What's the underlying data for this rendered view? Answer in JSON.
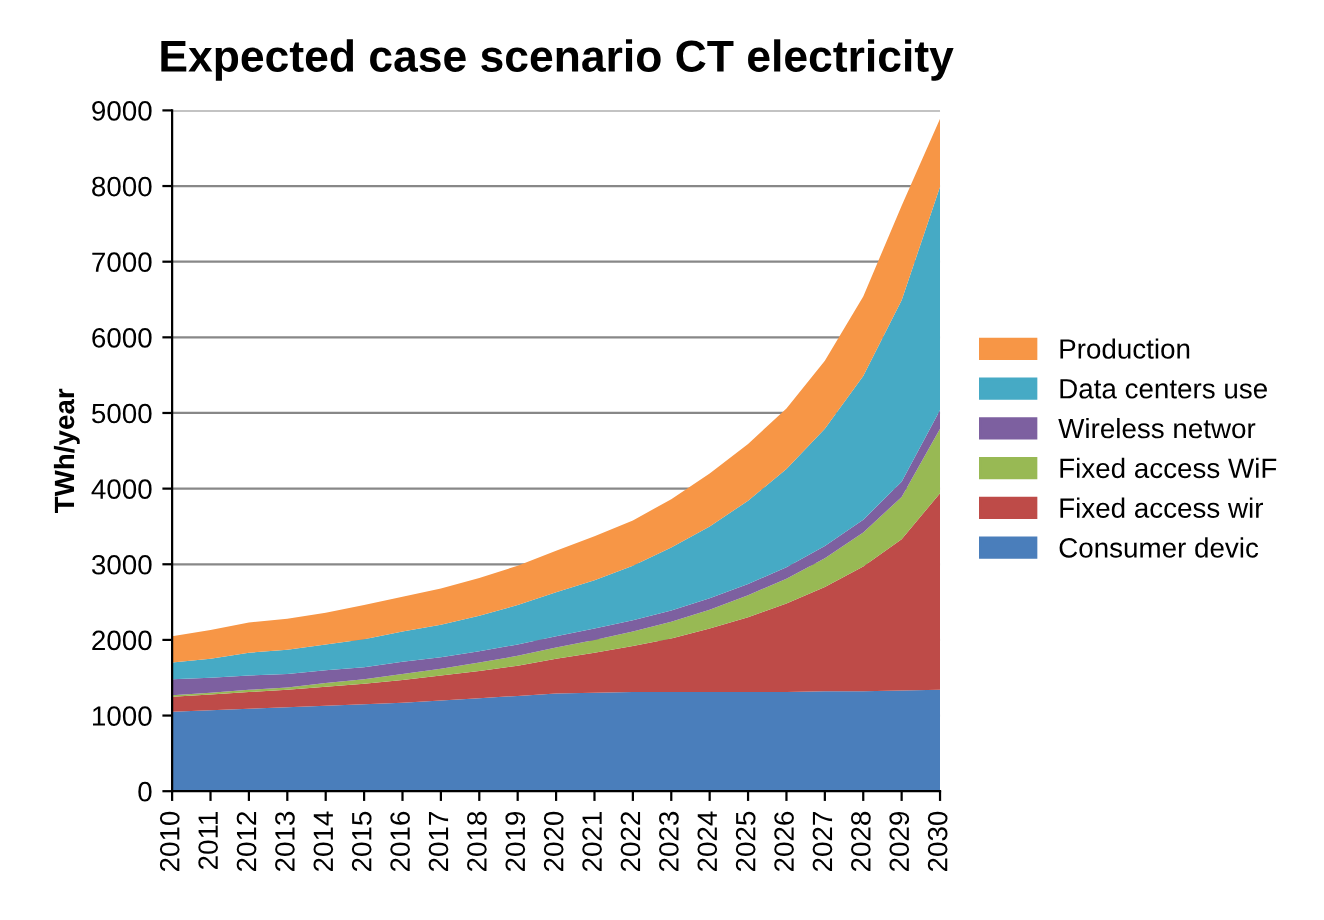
{
  "chart_data": {
    "type": "area",
    "title": "Expected case scenario CT electricity",
    "ylabel": "TWh/year",
    "categories": [
      "2010",
      "2011",
      "2012",
      "2013",
      "2014",
      "2015",
      "2016",
      "2017",
      "2018",
      "2019",
      "2020",
      "2021",
      "2022",
      "2023",
      "2024",
      "2025",
      "2026",
      "2027",
      "2028",
      "2029",
      "2030"
    ],
    "stacked": true,
    "ylim": [
      0,
      9000
    ],
    "yticks": [
      0,
      1000,
      2000,
      3000,
      4000,
      5000,
      6000,
      7000,
      8000,
      9000
    ],
    "grid": "y",
    "legend": "right",
    "series": [
      {
        "name": "Consumer devic",
        "color": "#4a7ebb",
        "values": [
          1050,
          1070,
          1090,
          1110,
          1130,
          1150,
          1170,
          1200,
          1230,
          1260,
          1290,
          1300,
          1310,
          1310,
          1310,
          1310,
          1310,
          1320,
          1320,
          1330,
          1340
        ]
      },
      {
        "name": "Fixed access wir",
        "color": "#be4b48",
        "values": [
          200,
          210,
          220,
          230,
          250,
          270,
          300,
          330,
          360,
          400,
          460,
          530,
          610,
          710,
          840,
          990,
          1170,
          1380,
          1650,
          2000,
          2600
        ]
      },
      {
        "name": "Fixed access WiF",
        "color": "#98b954",
        "values": [
          20,
          20,
          30,
          30,
          50,
          60,
          80,
          90,
          110,
          130,
          150,
          170,
          190,
          220,
          250,
          290,
          330,
          380,
          450,
          560,
          850
        ]
      },
      {
        "name": "Wireless networ",
        "color": "#7d60a0",
        "values": [
          210,
          200,
          190,
          180,
          170,
          160,
          160,
          150,
          150,
          150,
          150,
          150,
          150,
          150,
          150,
          150,
          150,
          160,
          170,
          200,
          250
        ]
      },
      {
        "name": "Data centers use",
        "color": "#46aac5",
        "values": [
          220,
          250,
          300,
          320,
          340,
          370,
          400,
          430,
          470,
          520,
          580,
          640,
          720,
          830,
          950,
          1100,
          1300,
          1550,
          1900,
          2400,
          2950
        ]
      },
      {
        "name": "Production",
        "color": "#f79646",
        "values": [
          350,
          380,
          400,
          410,
          420,
          450,
          460,
          480,
          500,
          520,
          550,
          580,
          600,
          640,
          700,
          750,
          800,
          900,
          1050,
          1250,
          900
        ]
      }
    ]
  }
}
